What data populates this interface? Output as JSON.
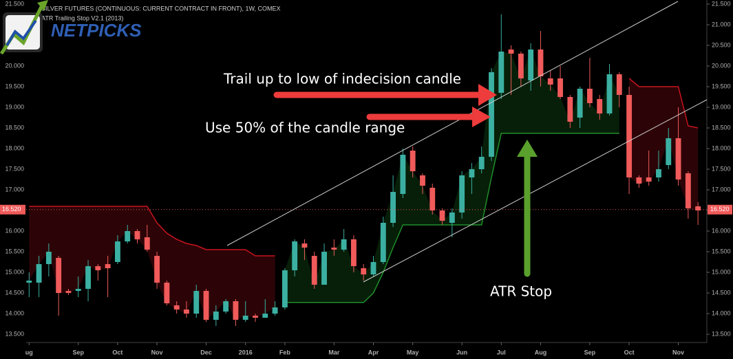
{
  "logo": "NETPICKS",
  "chart_data": {
    "type": "candlestick",
    "title": "SILVER FUTURES (CONTINUOUS: CURRENT CONTRACT IN FRONT), 1W, COMEX",
    "subtitle": "ATR Trailing Stop V2.1 (2013)",
    "open": [
      14.75,
      14.75,
      15.2,
      15.35,
      14.55,
      14.55,
      14.6,
      15.15,
      15.2,
      15.25,
      15.75,
      16.0,
      15.85,
      15.4,
      14.75,
      14.2,
      14.1,
      14.0,
      14.55,
      13.85,
      14.05,
      14.3,
      13.85,
      13.95,
      13.9,
      14.0,
      14.15,
      15.05,
      15.7,
      15.4,
      14.7,
      15.6,
      15.55,
      15.8,
      15.1,
      14.95,
      15.25,
      16.2,
      16.9,
      17.95,
      17.35,
      17.05,
      16.5,
      16.2,
      16.45,
      17.3,
      17.5,
      17.8,
      19.35,
      20.4,
      20.3,
      19.65,
      20.4,
      19.7,
      19.7,
      19.25,
      18.75,
      19.45,
      19.2,
      18.85,
      19.8,
      19.3,
      17.3,
      17.3,
      17.3,
      17.6,
      18.25,
      17.4,
      16.6
    ],
    "high": [
      15.0,
      15.4,
      15.7,
      15.4,
      14.6,
      14.9,
      15.3,
      15.2,
      15.4,
      15.9,
      16.15,
      16.05,
      16.15,
      15.5,
      14.8,
      14.3,
      14.3,
      14.7,
      14.6,
      14.2,
      14.35,
      14.35,
      14.3,
      14.0,
      14.35,
      14.3,
      15.1,
      15.8,
      15.8,
      15.5,
      15.7,
      15.8,
      16.05,
      15.9,
      15.2,
      15.4,
      16.35,
      17.35,
      18.0,
      18.05,
      17.4,
      17.15,
      16.55,
      16.55,
      17.45,
      17.65,
      18.05,
      19.95,
      21.25,
      20.5,
      20.35,
      20.55,
      20.85,
      19.9,
      20.0,
      19.3,
      19.5,
      20.2,
      19.3,
      20.05,
      19.85,
      19.5,
      17.35,
      17.95,
      17.95,
      18.5,
      19.0,
      17.45,
      16.7
    ],
    "low": [
      14.4,
      14.4,
      14.9,
      13.95,
      14.45,
      14.4,
      14.3,
      14.8,
      14.4,
      15.2,
      15.7,
      15.7,
      15.5,
      14.6,
      14.2,
      14.0,
      13.9,
      13.9,
      13.8,
      13.7,
      14.0,
      13.7,
      13.8,
      13.8,
      13.9,
      13.95,
      14.1,
      14.9,
      15.3,
      14.6,
      14.7,
      15.4,
      15.5,
      15.0,
      14.8,
      14.9,
      15.2,
      16.1,
      16.8,
      17.3,
      16.9,
      16.4,
      16.15,
      15.85,
      16.3,
      16.9,
      17.4,
      17.7,
      19.2,
      19.3,
      19.5,
      19.4,
      19.5,
      19.4,
      19.2,
      18.5,
      18.5,
      19.0,
      18.7,
      18.8,
      19.0,
      16.9,
      17.05,
      17.1,
      17.2,
      17.5,
      17.1,
      16.3,
      16.15
    ],
    "close": [
      14.8,
      15.2,
      15.5,
      14.5,
      14.5,
      14.6,
      15.15,
      15.05,
      15.1,
      15.75,
      16.0,
      15.8,
      15.55,
      14.75,
      14.25,
      14.1,
      14.0,
      14.55,
      13.85,
      14.05,
      14.3,
      13.85,
      13.95,
      13.9,
      14.0,
      14.15,
      15.05,
      15.75,
      15.6,
      14.7,
      15.5,
      15.55,
      15.8,
      15.15,
      14.95,
      15.25,
      16.2,
      16.95,
      17.85,
      17.45,
      17.1,
      16.5,
      16.25,
      16.45,
      17.35,
      17.5,
      17.8,
      19.85,
      20.35,
      20.3,
      19.7,
      20.4,
      19.75,
      19.55,
      19.25,
      18.65,
      19.45,
      19.1,
      18.85,
      19.8,
      19.3,
      17.3,
      17.15,
      17.2,
      17.5,
      18.25,
      17.25,
      16.55,
      16.5
    ],
    "stop_values": [
      16.6,
      16.6,
      16.6,
      16.6,
      16.6,
      16.6,
      16.6,
      16.6,
      16.6,
      16.6,
      16.6,
      16.6,
      16.6,
      16.2,
      15.95,
      15.8,
      15.7,
      15.65,
      15.55,
      15.55,
      15.55,
      15.55,
      15.55,
      15.4,
      15.4,
      15.4,
      14.27,
      14.27,
      14.27,
      14.27,
      14.27,
      14.27,
      14.27,
      14.27,
      14.27,
      14.5,
      15.0,
      15.6,
      16.15,
      16.15,
      16.15,
      16.15,
      16.15,
      16.15,
      16.15,
      16.15,
      16.15,
      17.3,
      18.37,
      18.37,
      18.37,
      18.37,
      18.37,
      18.37,
      18.37,
      18.37,
      18.37,
      18.37,
      18.37,
      18.37,
      18.37,
      19.7,
      19.5,
      19.5,
      19.5,
      19.5,
      19.5,
      18.55,
      18.5
    ],
    "up_color": "#3bb0a2",
    "down_color": "#f05a5a",
    "stop_up_color": "#1e8f2a",
    "stop_down_color": "#c8141e",
    "xlim": [
      -0.3,
      68.9
    ],
    "xticks": [
      {
        "value": 0,
        "label": "ug"
      },
      {
        "value": 5,
        "label": "Sep"
      },
      {
        "value": 9,
        "label": "Oct"
      },
      {
        "value": 13,
        "label": "Nov"
      },
      {
        "value": 18,
        "label": "Dec"
      },
      {
        "value": 22,
        "label": "2016"
      },
      {
        "value": 26,
        "label": "Feb"
      },
      {
        "value": 31,
        "label": "Mar"
      },
      {
        "value": 35,
        "label": "Apr"
      },
      {
        "value": 39,
        "label": "May"
      },
      {
        "value": 44,
        "label": "Jun"
      },
      {
        "value": 48,
        "label": "Jul"
      },
      {
        "value": 52,
        "label": "Aug"
      },
      {
        "value": 57,
        "label": "Sep"
      },
      {
        "value": 61,
        "label": "Oct"
      },
      {
        "value": 66,
        "label": "Nov"
      }
    ],
    "ylim": [
      13.3,
      21.6
    ],
    "yticks": [
      {
        "value": 13.5,
        "label": "13.500"
      },
      {
        "value": 14,
        "label": "14.000"
      },
      {
        "value": 14.5,
        "label": "14.500"
      },
      {
        "value": 15,
        "label": "15.000"
      },
      {
        "value": 15.5,
        "label": "15.500"
      },
      {
        "value": 16,
        "label": "16.000"
      },
      {
        "value": 16.5,
        "label": "16.500"
      },
      {
        "value": 17,
        "label": "17.000"
      },
      {
        "value": 17.5,
        "label": "17.500"
      },
      {
        "value": 18,
        "label": "18.000"
      },
      {
        "value": 18.5,
        "label": "18.500"
      },
      {
        "value": 19,
        "label": "19.000"
      },
      {
        "value": 19.5,
        "label": "19.500"
      },
      {
        "value": 20,
        "label": "20.000"
      },
      {
        "value": 20.5,
        "label": "20.500"
      },
      {
        "value": 21,
        "label": "21.000"
      },
      {
        "value": 21.5,
        "label": "21.500"
      }
    ],
    "last_price": {
      "value": 16.52,
      "label": "16.520"
    },
    "annotations": [
      "Trail up to low of indecision candle",
      "Use 50% of the candle range",
      "ATR  Stop"
    ]
  }
}
